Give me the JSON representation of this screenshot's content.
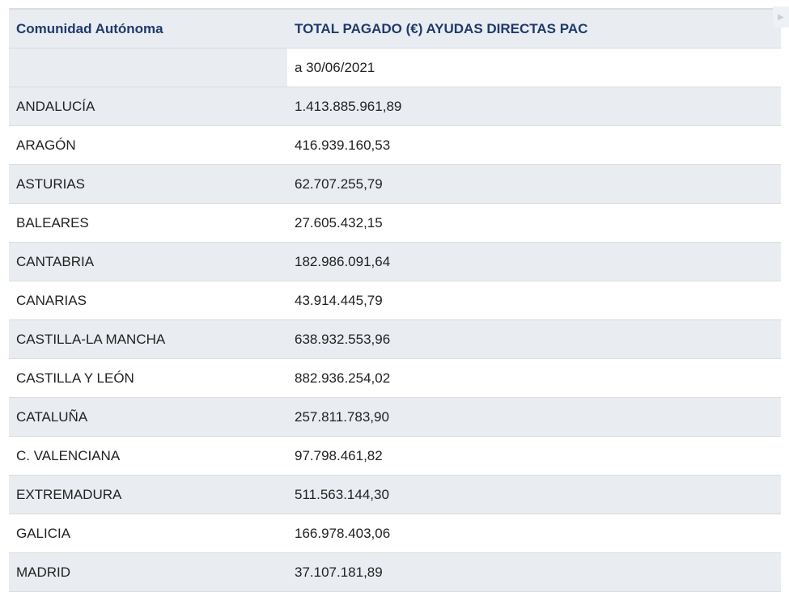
{
  "table": {
    "header": {
      "col1": "Comunidad Autónoma",
      "col2": "TOTAL PAGADO (€) AYUDAS DIRECTAS PAC",
      "col2_sub": "a 30/06/2021"
    },
    "rows": [
      {
        "region": "ANDALUCÍA",
        "amount": "1.413.885.961,89"
      },
      {
        "region": "ARAGÓN",
        "amount": "416.939.160,53"
      },
      {
        "region": "ASTURIAS",
        "amount": "62.707.255,79"
      },
      {
        "region": "BALEARES",
        "amount": "27.605.432,15"
      },
      {
        "region": "CANTABRIA",
        "amount": "182.986.091,64"
      },
      {
        "region": "CANARIAS",
        "amount": "43.914.445,79"
      },
      {
        "region": "CASTILLA-LA MANCHA",
        "amount": "638.932.553,96"
      },
      {
        "region": "CASTILLA Y LEÓN",
        "amount": "882.936.254,02"
      },
      {
        "region": "CATALUÑA",
        "amount": "257.811.783,90"
      },
      {
        "region": "C. VALENCIANA",
        "amount": "97.798.461,82"
      },
      {
        "region": "EXTREMADURA",
        "amount": "511.563.144,30"
      },
      {
        "region": "GALICIA",
        "amount": "166.978.403,06"
      },
      {
        "region": "MADRID",
        "amount": "37.107.181,89"
      }
    ]
  },
  "icons": {
    "corner": "scroll-indicator-icon"
  }
}
